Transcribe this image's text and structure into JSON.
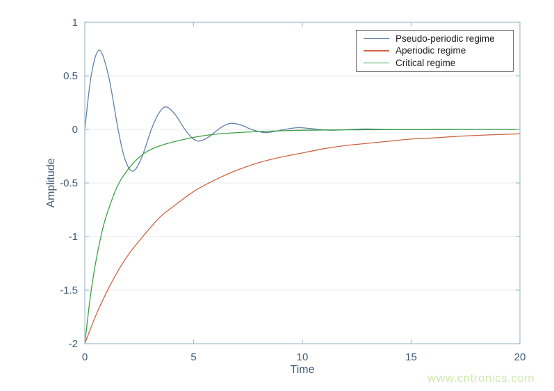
{
  "watermark": {
    "text": "www.cntronics.com",
    "color": "#cfe8ae"
  },
  "chart_data": {
    "type": "line",
    "title": "",
    "xlabel": "Time",
    "ylabel": "Amplitude",
    "xlim": [
      0,
      20
    ],
    "ylim": [
      -2,
      1
    ],
    "xticks": [
      0,
      5,
      10,
      15,
      20
    ],
    "yticks": [
      1,
      0.5,
      0,
      -0.5,
      -1,
      -1.5,
      -2
    ],
    "grid": "horizontal-only",
    "legend_position": "top-right",
    "axis_color": "#a5bdc9",
    "grid_color": "#ebebeb",
    "label_color": "#3e5a77",
    "series": [
      {
        "name": "Pseudo-periodic regime",
        "color": "#5e80a8",
        "points": [
          [
            0,
            0
          ],
          [
            0.3,
            0.51
          ],
          [
            0.67,
            0.74
          ],
          [
            1.1,
            0.49
          ],
          [
            1.53,
            0
          ],
          [
            1.85,
            -0.28
          ],
          [
            2.2,
            -0.39
          ],
          [
            2.6,
            -0.27
          ],
          [
            3.06,
            0
          ],
          [
            3.4,
            0.15
          ],
          [
            3.73,
            0.21
          ],
          [
            4.15,
            0.14
          ],
          [
            4.6,
            0
          ],
          [
            4.95,
            -0.083
          ],
          [
            5.26,
            -0.109
          ],
          [
            5.7,
            -0.07
          ],
          [
            6.13,
            0
          ],
          [
            6.5,
            0.045
          ],
          [
            6.8,
            0.057
          ],
          [
            7.25,
            0.036
          ],
          [
            7.66,
            0
          ],
          [
            8.33,
            -0.03
          ],
          [
            9.19,
            0
          ],
          [
            9.86,
            0.016
          ],
          [
            10.73,
            0
          ],
          [
            11.39,
            -0.008
          ],
          [
            12.26,
            0
          ],
          [
            12.92,
            0.004
          ],
          [
            13.79,
            0
          ],
          [
            15,
            -0.002
          ],
          [
            16.5,
            0.001
          ],
          [
            18,
            0
          ],
          [
            20,
            0
          ]
        ]
      },
      {
        "name": "Aperiodic regime",
        "color": "#cc6442",
        "points": [
          [
            0,
            -2
          ],
          [
            0.5,
            -1.74
          ],
          [
            1,
            -1.52
          ],
          [
            1.5,
            -1.33
          ],
          [
            2,
            -1.17
          ],
          [
            2.5,
            -1.04
          ],
          [
            3,
            -0.92
          ],
          [
            3.5,
            -0.81
          ],
          [
            4,
            -0.73
          ],
          [
            5,
            -0.58
          ],
          [
            6,
            -0.47
          ],
          [
            7,
            -0.38
          ],
          [
            8,
            -0.31
          ],
          [
            9,
            -0.26
          ],
          [
            10,
            -0.22
          ],
          [
            11,
            -0.18
          ],
          [
            12,
            -0.15
          ],
          [
            13,
            -0.13
          ],
          [
            14,
            -0.11
          ],
          [
            15,
            -0.09
          ],
          [
            16,
            -0.08
          ],
          [
            17,
            -0.066
          ],
          [
            18,
            -0.056
          ],
          [
            19,
            -0.048
          ],
          [
            20,
            -0.041
          ]
        ]
      },
      {
        "name": "Critical regime",
        "color": "#3aa143",
        "points": [
          [
            0,
            -2
          ],
          [
            0.25,
            -1.57
          ],
          [
            0.5,
            -1.24
          ],
          [
            0.75,
            -0.99
          ],
          [
            1,
            -0.8
          ],
          [
            1.5,
            -0.53
          ],
          [
            2,
            -0.37
          ],
          [
            2.5,
            -0.26
          ],
          [
            3,
            -0.19
          ],
          [
            3.5,
            -0.15
          ],
          [
            4,
            -0.12
          ],
          [
            5,
            -0.075
          ],
          [
            6,
            -0.045
          ],
          [
            7,
            -0.03
          ],
          [
            8,
            -0.02
          ],
          [
            9,
            -0.013
          ],
          [
            10,
            -0.008
          ],
          [
            12,
            -0.004
          ],
          [
            14,
            -0.002
          ],
          [
            16,
            -0.001
          ],
          [
            18,
            0
          ],
          [
            20,
            0
          ]
        ]
      }
    ]
  }
}
